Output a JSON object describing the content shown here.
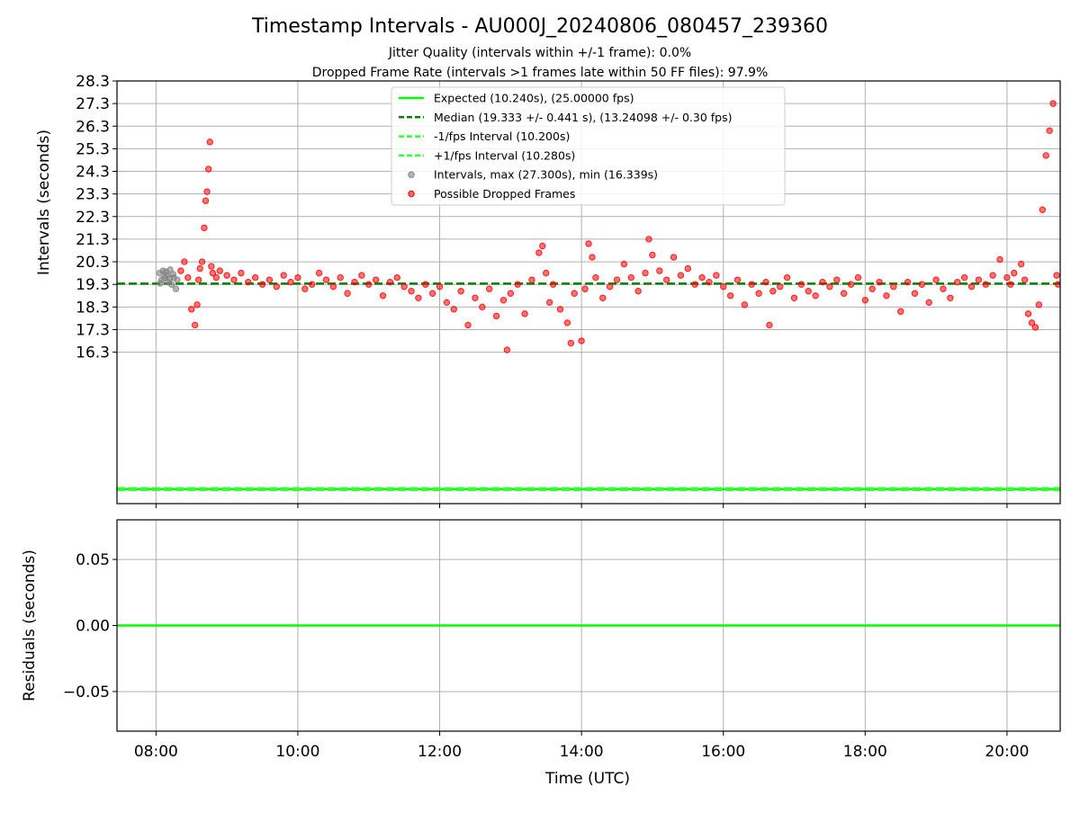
{
  "figure": {
    "title": "Timestamp Intervals - AU000J_20240806_080457_239360",
    "subtitle_1": "Jitter Quality (intervals within +/-1 frame): 0.0%",
    "subtitle_2": "Dropped Frame Rate (intervals >1 frames late within 50 FF files): 97.9%"
  },
  "colors": {
    "expected": "#00ff00",
    "median": "#008000",
    "fps_bounds": "#33ff33",
    "intervals": "#808080",
    "dropped": "#ff0000",
    "grid": "#b0b0b0",
    "residual": "#00ff00"
  },
  "chart_data": [
    {
      "type": "scatter",
      "xlabel": "",
      "ylabel": "Intervals (seconds)",
      "ylim": [
        9.6,
        28.3
      ],
      "y_ticks": [
        16.3,
        17.3,
        18.3,
        19.3,
        20.3,
        21.3,
        22.3,
        23.3,
        24.3,
        25.3,
        26.3,
        27.3,
        28.3
      ],
      "y_tick_labels": [
        "16.3",
        "17.3",
        "18.3",
        "19.3",
        "20.3",
        "21.3",
        "22.3",
        "23.3",
        "24.3",
        "25.3",
        "26.3",
        "27.3",
        "28.3"
      ],
      "xlim_hours": [
        7.45,
        20.75
      ],
      "x_ticks_hours": [
        8,
        10,
        12,
        14,
        16,
        18,
        20
      ],
      "grid": true,
      "legend_position": "top-center",
      "legend": [
        {
          "label": "Expected (10.240s), (25.00000 fps)",
          "style": "solid",
          "color_key": "expected"
        },
        {
          "label": "Median (19.333 +/- 0.441 s), (13.24098 +/- 0.30 fps)",
          "style": "dashed",
          "color_key": "median"
        },
        {
          "label": "-1/fps Interval (10.200s)",
          "style": "dashed",
          "color_key": "fps_bounds"
        },
        {
          "label": "+1/fps Interval (10.280s)",
          "style": "dashed",
          "color_key": "fps_bounds"
        },
        {
          "label": "Intervals, max (27.300s), min (16.339s)",
          "style": "marker",
          "color_key": "intervals"
        },
        {
          "label": "Possible Dropped Frames",
          "style": "marker",
          "color_key": "dropped"
        }
      ],
      "lines": {
        "expected": 10.24,
        "median": 19.333,
        "minus_fps": 10.2,
        "plus_fps": 10.28
      },
      "series": [
        {
          "name": "Intervals, max (27.300s), min (16.339s)",
          "x": [
            8.05,
            8.08,
            8.1,
            8.12,
            8.15,
            8.17,
            8.2,
            8.22,
            8.25,
            8.28,
            8.3,
            8.06,
            8.14,
            8.19,
            8.24
          ],
          "y": [
            19.8,
            19.5,
            19.9,
            19.6,
            19.7,
            19.4,
            19.95,
            19.3,
            19.6,
            19.1,
            19.5,
            19.35,
            19.85,
            19.55,
            19.75
          ]
        },
        {
          "name": "Possible Dropped Frames",
          "x": [
            8.35,
            8.4,
            8.45,
            8.5,
            8.55,
            8.58,
            8.6,
            8.62,
            8.65,
            8.68,
            8.7,
            8.72,
            8.74,
            8.76,
            8.78,
            8.8,
            8.85,
            8.9,
            9.0,
            9.1,
            9.2,
            9.3,
            9.4,
            9.5,
            9.6,
            9.7,
            9.8,
            9.9,
            10.0,
            10.1,
            10.2,
            10.3,
            10.4,
            10.5,
            10.6,
            10.7,
            10.8,
            10.9,
            11.0,
            11.1,
            11.2,
            11.3,
            11.4,
            11.5,
            11.6,
            11.7,
            11.8,
            11.9,
            12.0,
            12.1,
            12.2,
            12.3,
            12.4,
            12.5,
            12.6,
            12.7,
            12.8,
            12.9,
            12.95,
            13.0,
            13.1,
            13.2,
            13.3,
            13.4,
            13.45,
            13.5,
            13.55,
            13.6,
            13.7,
            13.8,
            13.85,
            13.9,
            14.0,
            14.05,
            14.1,
            14.15,
            14.2,
            14.3,
            14.4,
            14.5,
            14.6,
            14.7,
            14.8,
            14.9,
            14.95,
            15.0,
            15.1,
            15.2,
            15.3,
            15.4,
            15.5,
            15.6,
            15.7,
            15.8,
            15.9,
            16.0,
            16.1,
            16.2,
            16.3,
            16.4,
            16.5,
            16.6,
            16.65,
            16.7,
            16.8,
            16.9,
            17.0,
            17.1,
            17.2,
            17.3,
            17.4,
            17.5,
            17.6,
            17.7,
            17.8,
            17.9,
            18.0,
            18.1,
            18.2,
            18.3,
            18.4,
            18.5,
            18.6,
            18.7,
            18.8,
            18.9,
            19.0,
            19.1,
            19.2,
            19.3,
            19.4,
            19.5,
            19.6,
            19.7,
            19.8,
            19.9,
            20.0,
            20.05,
            20.1,
            20.2,
            20.25,
            20.3,
            20.35,
            20.4,
            20.45,
            20.5,
            20.55,
            20.6,
            20.65,
            20.7,
            20.72
          ],
          "y": [
            19.9,
            20.3,
            19.6,
            18.2,
            17.5,
            18.4,
            19.5,
            20.0,
            20.3,
            21.8,
            23.0,
            23.4,
            24.4,
            25.6,
            20.1,
            19.8,
            19.6,
            19.9,
            19.7,
            19.5,
            19.8,
            19.4,
            19.6,
            19.3,
            19.5,
            19.2,
            19.7,
            19.4,
            19.6,
            19.1,
            19.3,
            19.8,
            19.5,
            19.2,
            19.6,
            18.9,
            19.4,
            19.7,
            19.3,
            19.5,
            18.8,
            19.4,
            19.6,
            19.2,
            19.0,
            18.7,
            19.3,
            18.9,
            19.2,
            18.5,
            18.2,
            19.0,
            17.5,
            18.7,
            18.3,
            19.1,
            17.9,
            18.6,
            16.4,
            18.9,
            19.3,
            18.0,
            19.5,
            20.7,
            21.0,
            19.8,
            18.5,
            19.3,
            18.2,
            17.6,
            16.7,
            18.9,
            16.8,
            19.1,
            21.1,
            20.5,
            19.6,
            18.7,
            19.2,
            19.5,
            20.2,
            19.6,
            19.0,
            19.8,
            21.3,
            20.6,
            19.9,
            19.5,
            20.5,
            19.7,
            20.0,
            19.3,
            19.6,
            19.4,
            19.7,
            19.2,
            18.8,
            19.5,
            18.4,
            19.3,
            18.9,
            19.4,
            17.5,
            19.0,
            19.2,
            19.6,
            18.7,
            19.3,
            19.0,
            18.8,
            19.4,
            19.2,
            19.5,
            18.9,
            19.3,
            19.6,
            18.6,
            19.1,
            19.4,
            18.8,
            19.2,
            18.1,
            19.4,
            18.9,
            19.3,
            18.5,
            19.5,
            19.1,
            18.7,
            19.4,
            19.6,
            19.2,
            19.5,
            19.3,
            19.7,
            20.4,
            19.6,
            19.3,
            19.8,
            20.2,
            19.5,
            18.0,
            17.6,
            17.4,
            18.4,
            22.6,
            25.0,
            26.1,
            27.3,
            19.7,
            19.3
          ]
        }
      ]
    },
    {
      "type": "line",
      "xlabel": "Time (UTC)",
      "ylabel": "Residuals (seconds)",
      "ylim": [
        -0.08,
        0.08
      ],
      "y_ticks": [
        0.05,
        0.0,
        -0.05
      ],
      "y_tick_labels": [
        "0.05",
        "0.00",
        "−0.05"
      ],
      "x_ticks_hours": [
        8,
        10,
        12,
        14,
        16,
        18,
        20
      ],
      "x_tick_labels": [
        "08:00",
        "10:00",
        "12:00",
        "14:00",
        "16:00",
        "18:00",
        "20:00"
      ],
      "grid": true,
      "series": [
        {
          "x": [
            7.45,
            20.75
          ],
          "y": [
            0.0,
            0.0
          ]
        }
      ]
    }
  ]
}
